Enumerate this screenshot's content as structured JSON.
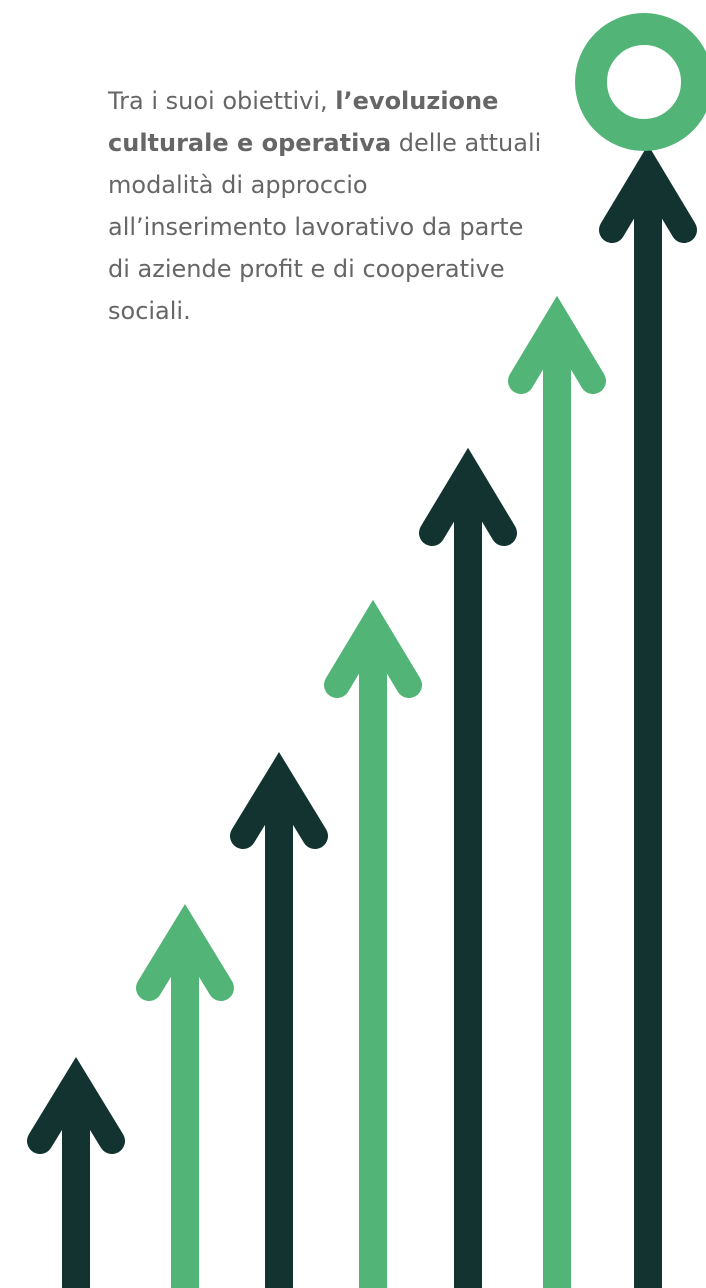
{
  "intro": {
    "prefix": "Tra i suoi obiettivi, ",
    "highlight": "l’evoluzione culturale e operativa",
    "suffix": " delle attuali modalità di approccio all’inserimento lavorativo da parte di aziende profit e di cooperative sociali."
  },
  "graphic": {
    "arrow_count": 7,
    "goal_ring": "ring-icon"
  },
  "colors": {
    "text": "#666666",
    "dark_green": "#123330",
    "light_green": "#52b577",
    "background": "#ffffff"
  }
}
